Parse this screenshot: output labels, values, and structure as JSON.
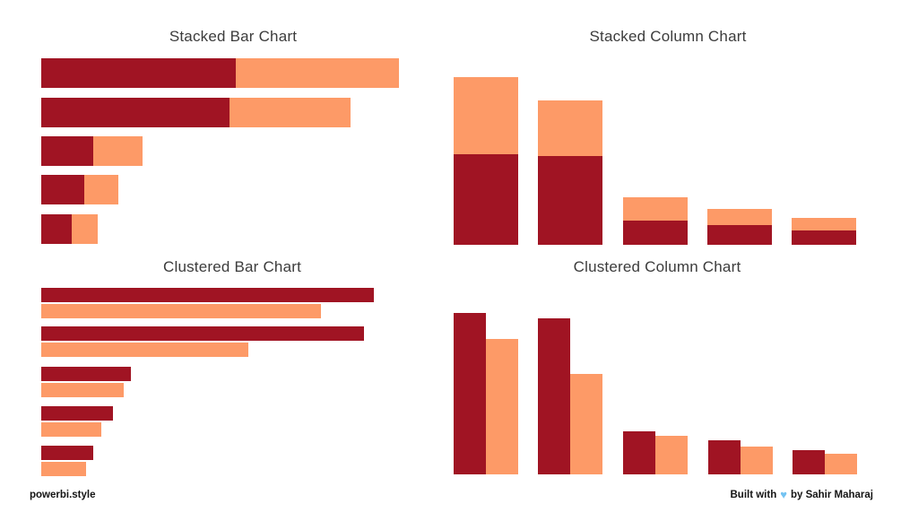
{
  "palette": {
    "dark_red": "#A01423",
    "orange": "#FD9A67",
    "title_color": "#3C3C3C",
    "background": "#FFFFFF",
    "heart_blue": "#74C3F2"
  },
  "footer": {
    "brand": "powerbi.style",
    "credit_prefix": "Built with",
    "credit_suffix": "by Sahir Maharaj",
    "heart_icon": "blue-heart"
  },
  "chart_data": [
    {
      "id": "stacked-bar",
      "type": "bar",
      "mode": "stacked",
      "orientation": "horizontal",
      "title": "Stacked Bar Chart",
      "legend": "none",
      "axes_visible": false,
      "categories": [
        "",
        "",
        "",
        "",
        ""
      ],
      "series": [
        {
          "name": "dark-red",
          "color": "#A01423",
          "values": [
            217,
            210,
            58,
            48,
            34
          ]
        },
        {
          "name": "orange",
          "color": "#FD9A67",
          "values": [
            182,
            135,
            55,
            38,
            29
          ]
        }
      ],
      "layout": {
        "x0": 46,
        "ys": [
          65,
          109,
          152,
          195,
          239
        ],
        "thickness": 33
      }
    },
    {
      "id": "stacked-column",
      "type": "column",
      "mode": "stacked",
      "orientation": "vertical",
      "title": "Stacked Column Chart",
      "legend": "none",
      "axes_visible": false,
      "categories": [
        "",
        "",
        "",
        "",
        ""
      ],
      "series": [
        {
          "name": "dark-red",
          "color": "#A01423",
          "values": [
            101,
            99,
            27,
            22,
            16
          ]
        },
        {
          "name": "orange",
          "color": "#FD9A67",
          "values": [
            86,
            62,
            26,
            18,
            14
          ]
        }
      ],
      "layout": {
        "xs": [
          506,
          600,
          695,
          789,
          883
        ],
        "width": 72,
        "baseline": 273
      }
    },
    {
      "id": "clustered-bar",
      "type": "bar",
      "mode": "clustered",
      "orientation": "horizontal",
      "title": "Clustered Bar Chart",
      "legend": "none",
      "axes_visible": false,
      "categories": [
        "",
        "",
        "",
        "",
        ""
      ],
      "series": [
        {
          "name": "dark-red",
          "color": "#A01423",
          "values": [
            371,
            360,
            100,
            80,
            58
          ]
        },
        {
          "name": "orange",
          "color": "#FD9A67",
          "values": [
            312,
            231,
            92,
            67,
            50
          ]
        }
      ],
      "layout": {
        "x0": 46,
        "ys": [
          321,
          364,
          409,
          453,
          497
        ],
        "thickness": 16,
        "series_gap": 2
      }
    },
    {
      "id": "clustered-column",
      "type": "column",
      "mode": "clustered",
      "orientation": "vertical",
      "title": "Clustered Column Chart",
      "legend": "none",
      "axes_visible": false,
      "categories": [
        "",
        "",
        "",
        "",
        ""
      ],
      "series": [
        {
          "name": "dark-red",
          "color": "#A01423",
          "values": [
            180,
            174,
            48,
            38,
            27
          ]
        },
        {
          "name": "orange",
          "color": "#FD9A67",
          "values": [
            151,
            112,
            43,
            31,
            23
          ]
        }
      ],
      "layout": {
        "xs": [
          506,
          600,
          695,
          790,
          884
        ],
        "width": 36,
        "baseline": 529
      }
    }
  ]
}
